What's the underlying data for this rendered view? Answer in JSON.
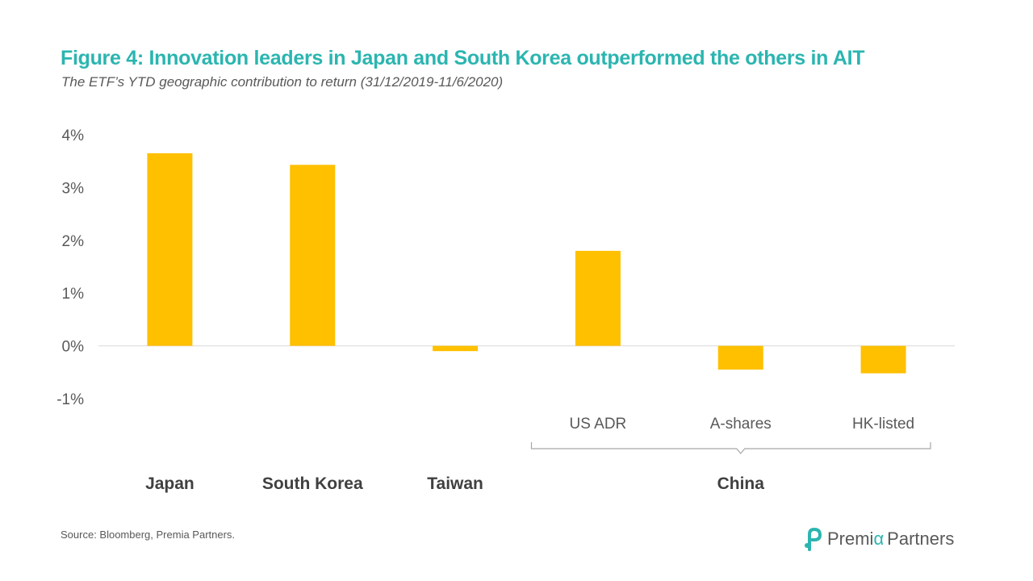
{
  "header": {
    "title": "Figure 4: Innovation leaders in Japan and South Korea outperformed the others in AIT",
    "subtitle": "The ETF’s YTD geographic contribution to return (31/12/2019-11/6/2020)"
  },
  "footer": {
    "source": "Source: Bloomberg, Premia Partners.",
    "logo_part1": "Premi",
    "logo_alpha": "α",
    "logo_part2": "Partners"
  },
  "colors": {
    "title": "#2BB5B0",
    "bar": "#FFC000",
    "axis_text": "#595959",
    "group_text": "#404040",
    "zero_line": "#D9D9D9",
    "bracket": "#A6A6A6",
    "logo_mark": "#2BB5B0"
  },
  "chart_data": {
    "type": "bar",
    "categories": [
      "Japan",
      "South Korea",
      "Taiwan",
      "US ADR",
      "A-shares",
      "HK-listed"
    ],
    "values": [
      3.65,
      3.43,
      -0.1,
      1.8,
      -0.45,
      -0.52
    ],
    "groups": [
      {
        "label": "Japan",
        "categories": [
          "Japan"
        ]
      },
      {
        "label": "South Korea",
        "categories": [
          "South Korea"
        ]
      },
      {
        "label": "Taiwan",
        "categories": [
          "Taiwan"
        ]
      },
      {
        "label": "China",
        "categories": [
          "US ADR",
          "A-shares",
          "HK-listed"
        ]
      }
    ],
    "subcategory_labels": [
      "US ADR",
      "A-shares",
      "HK-listed"
    ],
    "yticks": [
      "-1%",
      "0%",
      "1%",
      "2%",
      "3%",
      "4%"
    ],
    "ylim": [
      -1,
      4
    ],
    "unit": "%",
    "grid": false,
    "legend": "none"
  }
}
